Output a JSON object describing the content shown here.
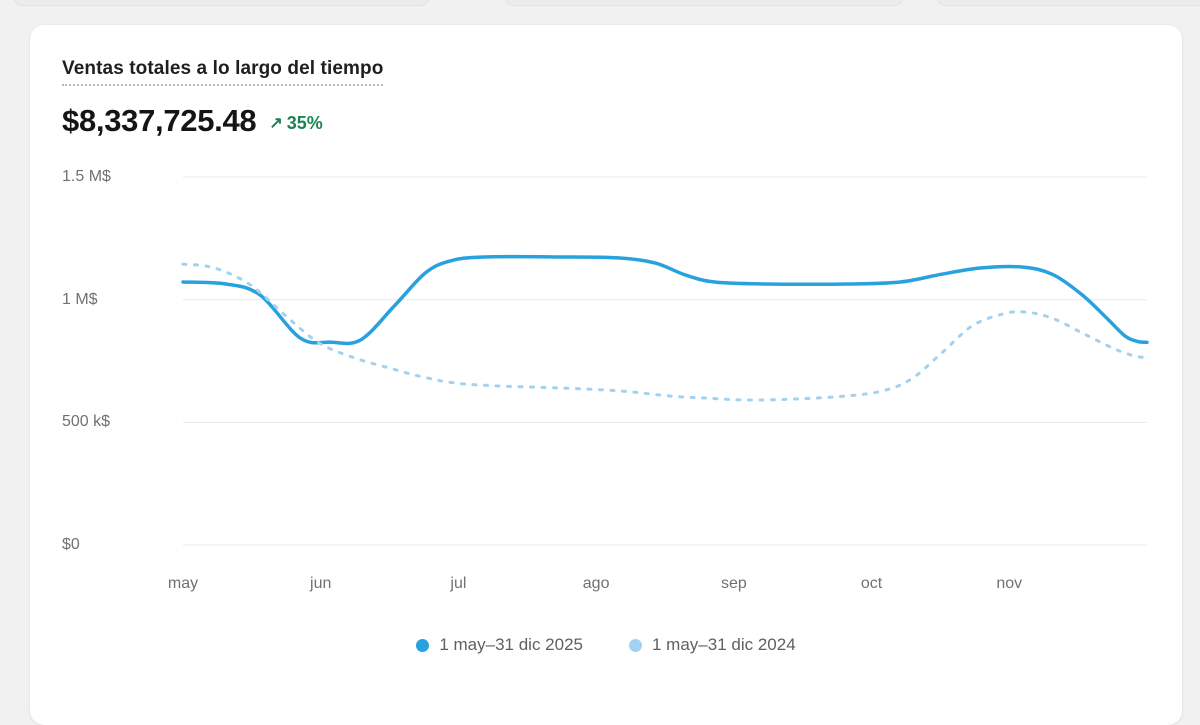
{
  "page": {
    "background": "#f1f1f1"
  },
  "card": {
    "title": "Ventas totales a lo largo del tiempo",
    "total_value": "$8,337,725.48",
    "delta": {
      "arrow": "↗",
      "label": "35%",
      "color": "#1a8452"
    }
  },
  "chart_data": {
    "type": "line",
    "title": "Ventas totales a lo largo del tiempo",
    "total_label": "$8,337,725.48",
    "change_percent": "35%",
    "unit": "USD",
    "grid": true,
    "gridline_color": "#e9eaeb",
    "legend_position": "bottom",
    "x_axis": {
      "categories": [
        "may",
        "jun",
        "jul",
        "ago",
        "sep",
        "oct",
        "nov"
      ]
    },
    "y_axis": {
      "min": 0,
      "max": 1500000,
      "ticks": [
        {
          "label": "1.5 M$",
          "value": 1500000
        },
        {
          "label": "1 M$",
          "value": 1000000
        },
        {
          "label": "500 k$",
          "value": 500000
        },
        {
          "label": "$0",
          "value": 0
        }
      ]
    },
    "series": [
      {
        "name": "1 may–31 dic 2025",
        "color": "#28a2de",
        "style": "solid",
        "points": [
          {
            "m": 0,
            "v": 1072000
          },
          {
            "m": 0.31,
            "v": 1064000
          },
          {
            "m": 0.56,
            "v": 1019000
          },
          {
            "m": 0.85,
            "v": 844000
          },
          {
            "m": 1.07,
            "v": 827000
          },
          {
            "m": 1.29,
            "v": 836000
          },
          {
            "m": 1.54,
            "v": 978000
          },
          {
            "m": 1.76,
            "v": 1109000
          },
          {
            "m": 1.94,
            "v": 1158000
          },
          {
            "m": 2.19,
            "v": 1174000
          },
          {
            "m": 2.74,
            "v": 1174000
          },
          {
            "m": 3.17,
            "v": 1170000
          },
          {
            "m": 3.43,
            "v": 1149000
          },
          {
            "m": 3.65,
            "v": 1100000
          },
          {
            "m": 3.86,
            "v": 1072000
          },
          {
            "m": 4.23,
            "v": 1064000
          },
          {
            "m": 4.84,
            "v": 1064000
          },
          {
            "m": 5.21,
            "v": 1072000
          },
          {
            "m": 5.51,
            "v": 1104000
          },
          {
            "m": 5.79,
            "v": 1129000
          },
          {
            "m": 6.09,
            "v": 1133000
          },
          {
            "m": 6.31,
            "v": 1104000
          },
          {
            "m": 6.53,
            "v": 1019000
          },
          {
            "m": 6.7,
            "v": 929000
          },
          {
            "m": 6.84,
            "v": 852000
          },
          {
            "m": 6.93,
            "v": 830000
          },
          {
            "m": 7,
            "v": 826000
          }
        ]
      },
      {
        "name": "1 may–31 dic 2024",
        "color": "#a3d2f0",
        "style": "dashed",
        "points": [
          {
            "m": 0,
            "v": 1145000
          },
          {
            "m": 0.23,
            "v": 1129000
          },
          {
            "m": 0.49,
            "v": 1060000
          },
          {
            "m": 0.74,
            "v": 937000
          },
          {
            "m": 0.99,
            "v": 823000
          },
          {
            "m": 1.25,
            "v": 762000
          },
          {
            "m": 1.5,
            "v": 721000
          },
          {
            "m": 1.74,
            "v": 685000
          },
          {
            "m": 1.98,
            "v": 660000
          },
          {
            "m": 2.3,
            "v": 648000
          },
          {
            "m": 2.74,
            "v": 640000
          },
          {
            "m": 3.17,
            "v": 628000
          },
          {
            "m": 3.54,
            "v": 607000
          },
          {
            "m": 3.79,
            "v": 599000
          },
          {
            "m": 4.08,
            "v": 591000
          },
          {
            "m": 4.44,
            "v": 595000
          },
          {
            "m": 4.81,
            "v": 607000
          },
          {
            "m": 5.08,
            "v": 628000
          },
          {
            "m": 5.29,
            "v": 677000
          },
          {
            "m": 5.51,
            "v": 783000
          },
          {
            "m": 5.73,
            "v": 893000
          },
          {
            "m": 5.95,
            "v": 941000
          },
          {
            "m": 6.11,
            "v": 950000
          },
          {
            "m": 6.31,
            "v": 925000
          },
          {
            "m": 6.53,
            "v": 864000
          },
          {
            "m": 6.75,
            "v": 803000
          },
          {
            "m": 6.9,
            "v": 772000
          },
          {
            "m": 7,
            "v": 763000
          }
        ]
      }
    ]
  }
}
